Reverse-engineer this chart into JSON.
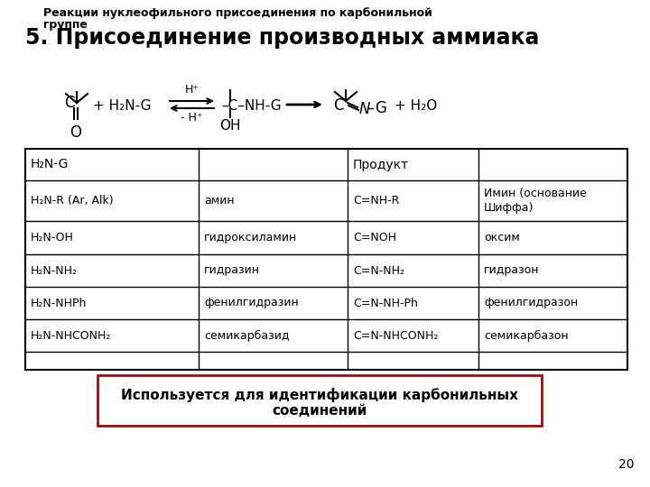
{
  "title_main": "5. Присоединение производных аммиака",
  "title_sub1": "Реакции нуклеофильного присоединения по карбонильной",
  "title_sub2": "группе",
  "table_row0_c0": "H₂N-G",
  "table_row0_c2": "Продукт",
  "table_rows": [
    [
      "H₂N-R (Ar, Alk)",
      "амин",
      "C=NH-R",
      "Имин (основание\nШиффа)"
    ],
    [
      "H₂N-OH",
      "гидроксиламин",
      "C=NOH",
      "оксим"
    ],
    [
      "H₂N-NH₂",
      "гидразин",
      "C=N-NH₂",
      "гидразон"
    ],
    [
      "H₂N-NHPh",
      "фенилгидразин",
      "C=N-NH-Ph",
      "фенилгидразон"
    ],
    [
      "H₂N-NHCONH₂",
      "семикарбазид",
      "C=N-NHCONH₂",
      "семикарбазон"
    ]
  ],
  "footer_line1": "Используется для идентификации карбонильных",
  "footer_line2": "соединений",
  "page_number": "20",
  "bg_color": "#ffffff",
  "border_color": "#c00000",
  "text_color": "#000000"
}
